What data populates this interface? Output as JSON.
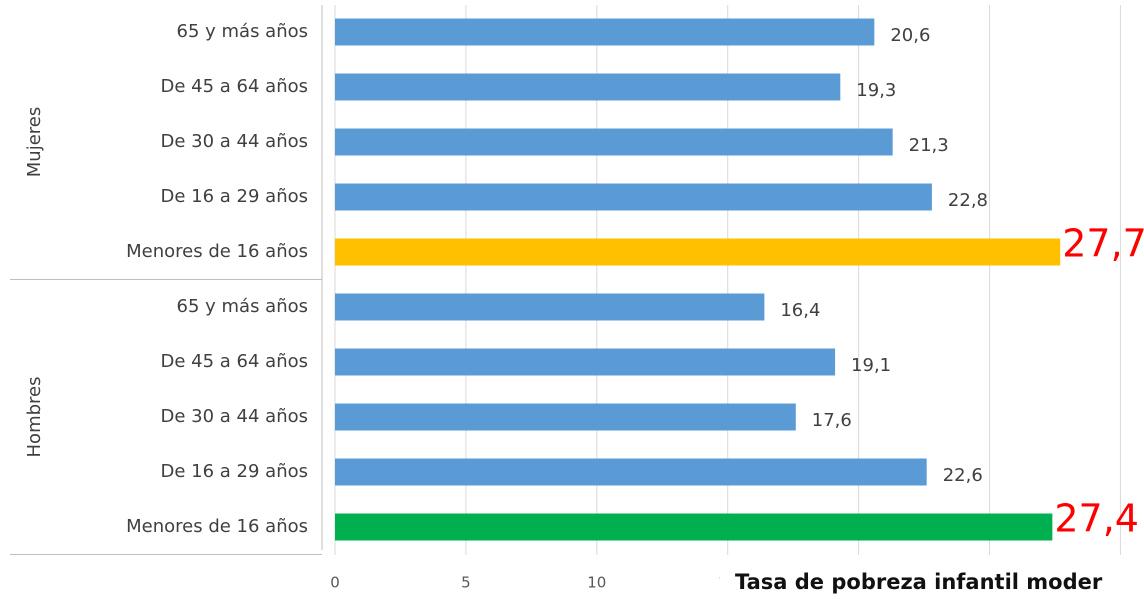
{
  "chart_data": {
    "type": "bar",
    "groups": [
      {
        "name": "Mujeres",
        "categories": [
          "65 y más años",
          "De 45 a 64 años",
          "De 30 a 44 años",
          "De 16 a 29 años",
          "Menores de 16 años"
        ],
        "values": [
          20.6,
          19.3,
          21.3,
          22.8,
          27.7
        ],
        "value_labels": [
          "20,6",
          "19,3",
          "21,3",
          "22,8",
          "27,7"
        ],
        "colors": [
          "#5b9bd5",
          "#5b9bd5",
          "#5b9bd5",
          "#5b9bd5",
          "#ffc000"
        ]
      },
      {
        "name": "Hombres",
        "categories": [
          "65 y más años",
          "De 45 a 64 años",
          "De 30 a 44 años",
          "De 16 a 29 años",
          "Menores de 16 años"
        ],
        "values": [
          16.4,
          19.1,
          17.6,
          22.6,
          27.4
        ],
        "value_labels": [
          "16,4",
          "19,1",
          "17,6",
          "22,6",
          "27,4"
        ],
        "colors": [
          "#5b9bd5",
          "#5b9bd5",
          "#5b9bd5",
          "#5b9bd5",
          "#00b050"
        ]
      }
    ],
    "xlim": [
      0,
      30.9
    ],
    "xticks": [
      0,
      5,
      10,
      15,
      20,
      25,
      30
    ],
    "grid": true,
    "annotation": "Tasa de pobreza infantil moder"
  }
}
